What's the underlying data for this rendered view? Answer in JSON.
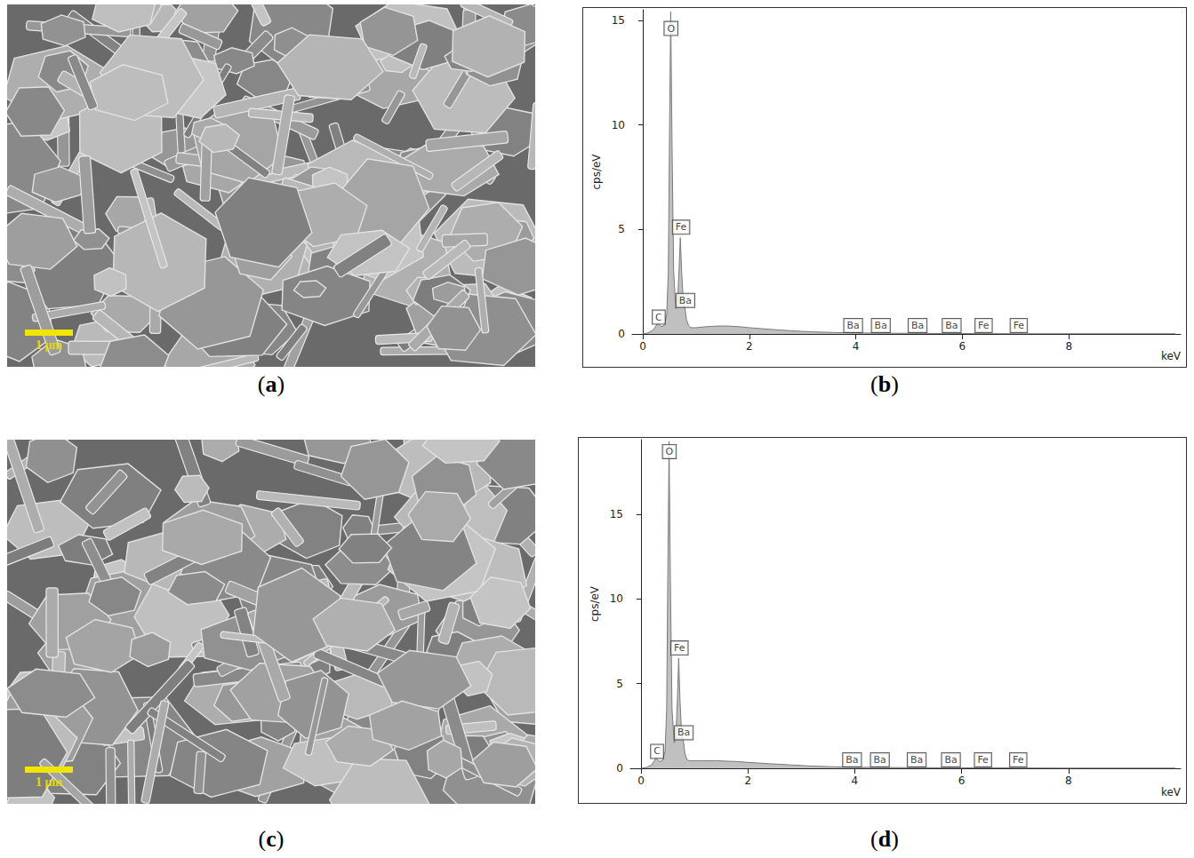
{
  "images": [
    {
      "label": "(a)",
      "scale_bar": "1 μm"
    },
    {
      "label": "(c)",
      "scale_bar": "1 μm"
    }
  ],
  "chart_data": [
    {
      "label": "(b)",
      "type": "area",
      "y_label": "cps/eV",
      "x_label": "keV",
      "color": "#c0c0c0",
      "grid": false,
      "xlim": [
        -0.2,
        10.1
      ],
      "xticks": [
        0,
        2,
        4,
        6,
        8
      ],
      "ylim": [
        0,
        15.5
      ],
      "yticks": [
        0,
        5,
        10,
        15
      ],
      "x": [
        0,
        0.1,
        0.2,
        0.25,
        0.28,
        0.31,
        0.35,
        0.4,
        0.45,
        0.48,
        0.5,
        0.525,
        0.55,
        0.58,
        0.62,
        0.65,
        0.68,
        0.705,
        0.73,
        0.76,
        0.79,
        0.82,
        0.86,
        0.9,
        1.0,
        1.2,
        1.4,
        1.6,
        1.8,
        2.0,
        2.4,
        2.8,
        3.2,
        3.6,
        4.0,
        4.5,
        5,
        6,
        7,
        8,
        9,
        10
      ],
      "values": [
        0,
        0.05,
        0.2,
        0.4,
        0.55,
        0.45,
        0.35,
        0.4,
        0.9,
        3,
        9,
        15.4,
        9,
        3,
        1.2,
        1.3,
        3,
        4.6,
        3,
        1.6,
        1.3,
        0.7,
        0.4,
        0.3,
        0.3,
        0.35,
        0.38,
        0.38,
        0.35,
        0.3,
        0.22,
        0.15,
        0.1,
        0.07,
        0.05,
        0.04,
        0.03,
        0.02,
        0.01,
        0.01,
        0.01,
        0.01
      ],
      "annotations": [
        {
          "text": "C",
          "x": 0.3,
          "y": 0.4
        },
        {
          "text": "O",
          "x": 0.53,
          "y": 14.2
        },
        {
          "text": "Fe",
          "x": 0.72,
          "y": 4.7
        },
        {
          "text": "Ba",
          "x": 0.8,
          "y": 1.2
        },
        {
          "text": "Ba",
          "x": 3.95,
          "y": 0
        },
        {
          "text": "Ba",
          "x": 4.47,
          "y": 0
        },
        {
          "text": "Ba",
          "x": 5.16,
          "y": 0
        },
        {
          "text": "Ba",
          "x": 5.8,
          "y": 0
        },
        {
          "text": "Fe",
          "x": 6.4,
          "y": 0
        },
        {
          "text": "Fe",
          "x": 7.06,
          "y": 0
        }
      ]
    },
    {
      "label": "(d)",
      "type": "area",
      "y_label": "cps/eV",
      "x_label": "keV",
      "color": "#c0c0c0",
      "grid": false,
      "xlim": [
        -0.2,
        10.1
      ],
      "xticks": [
        0,
        2,
        4,
        6,
        8
      ],
      "ylim": [
        0,
        19.4
      ],
      "yticks": [
        0,
        5,
        10,
        15
      ],
      "x": [
        0,
        0.1,
        0.2,
        0.25,
        0.28,
        0.31,
        0.35,
        0.4,
        0.45,
        0.48,
        0.5,
        0.525,
        0.55,
        0.58,
        0.62,
        0.65,
        0.68,
        0.705,
        0.73,
        0.76,
        0.79,
        0.82,
        0.86,
        0.9,
        1.0,
        1.2,
        1.4,
        1.6,
        1.8,
        2.0,
        2.4,
        2.8,
        3.2,
        3.6,
        4.0,
        4.5,
        5,
        6,
        7,
        8,
        9,
        10
      ],
      "values": [
        0,
        0.05,
        0.2,
        0.45,
        0.6,
        0.5,
        0.4,
        0.45,
        1,
        3.5,
        11,
        19.3,
        11,
        3.5,
        1.5,
        1.7,
        4,
        6.5,
        4,
        2,
        1.7,
        0.9,
        0.5,
        0.45,
        0.45,
        0.45,
        0.45,
        0.42,
        0.4,
        0.35,
        0.27,
        0.2,
        0.13,
        0.09,
        0.06,
        0.05,
        0.04,
        0.03,
        0.02,
        0.01,
        0.01,
        0.01
      ],
      "annotations": [
        {
          "text": "C",
          "x": 0.3,
          "y": 0.5
        },
        {
          "text": "O",
          "x": 0.53,
          "y": 18.2
        },
        {
          "text": "Fe",
          "x": 0.72,
          "y": 6.6
        },
        {
          "text": "Ba",
          "x": 0.8,
          "y": 1.6
        },
        {
          "text": "Ba",
          "x": 3.95,
          "y": 0
        },
        {
          "text": "Ba",
          "x": 4.47,
          "y": 0
        },
        {
          "text": "Ba",
          "x": 5.16,
          "y": 0
        },
        {
          "text": "Ba",
          "x": 5.8,
          "y": 0
        },
        {
          "text": "Fe",
          "x": 6.4,
          "y": 0
        },
        {
          "text": "Fe",
          "x": 7.06,
          "y": 0
        }
      ]
    }
  ]
}
